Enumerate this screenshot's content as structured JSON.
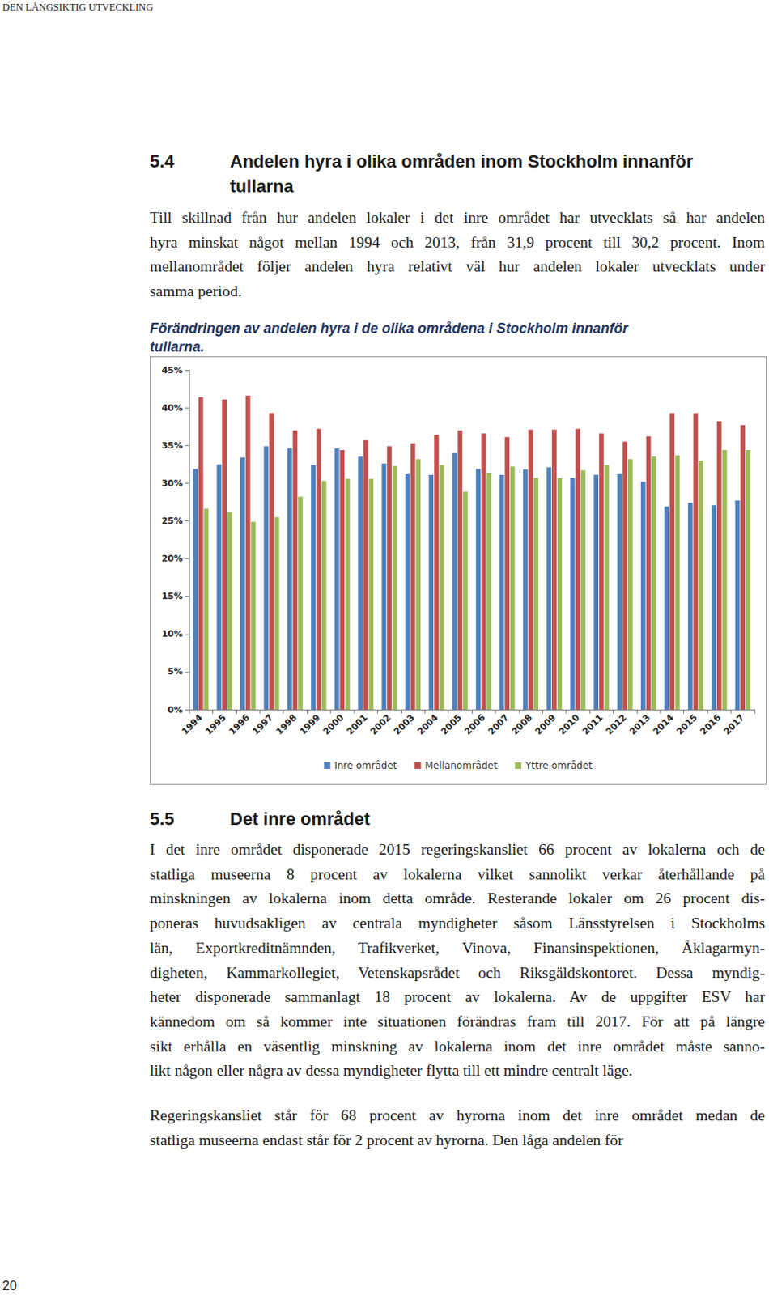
{
  "header": "DEN LÅNGSIKTIG UTVECKLING",
  "section_5_4": {
    "number": "5.4",
    "title_lines": [
      "Andelen hyra i olika områden inom Stockholm innanför",
      "tullarna"
    ],
    "paragraph_lines": [
      "Till skillnad från hur andelen lokaler i det inre området har utvecklats så har andelen",
      "hyra minskat något mellan 1994 och 2013, från 31,9 procent till 30,2 procent. Inom",
      "mellanområdet följer andelen hyra relativt väl hur andelen lokaler utvecklats under",
      "samma period."
    ],
    "figure_caption_lines": [
      "Förändringen av andelen hyra i de olika områdena i Stockholm innanför",
      "tullarna."
    ]
  },
  "chart_data": {
    "type": "bar",
    "categories": [
      "1994",
      "1995",
      "1996",
      "1997",
      "1998",
      "1999",
      "2000",
      "2001",
      "2002",
      "2003",
      "2004",
      "2005",
      "2006",
      "2007",
      "2008",
      "2009",
      "2010",
      "2011",
      "2012",
      "2013",
      "2014",
      "2015",
      "2016",
      "2017"
    ],
    "series": [
      {
        "name": "Inre området",
        "color": "#4f81bd",
        "values": [
          31.9,
          32.5,
          33.4,
          34.9,
          34.6,
          32.4,
          34.6,
          33.5,
          32.6,
          31.2,
          31.1,
          34.0,
          31.9,
          31.1,
          31.8,
          32.1,
          30.7,
          31.1,
          31.2,
          30.2,
          26.9,
          27.4,
          27.1,
          27.7
        ]
      },
      {
        "name": "Mellanområdet",
        "color": "#c0504d",
        "values": [
          41.4,
          41.1,
          41.6,
          39.3,
          37.0,
          37.2,
          34.4,
          35.7,
          34.9,
          35.3,
          36.4,
          37.0,
          36.6,
          36.1,
          37.1,
          37.1,
          37.2,
          36.6,
          35.5,
          36.2,
          39.3,
          39.3,
          38.2,
          37.7
        ]
      },
      {
        "name": "Yttre området",
        "color": "#9bbb59",
        "values": [
          26.6,
          26.2,
          24.9,
          25.5,
          28.2,
          30.3,
          30.6,
          30.6,
          32.3,
          33.2,
          32.4,
          28.9,
          31.3,
          32.2,
          30.7,
          30.7,
          31.7,
          32.4,
          33.2,
          33.5,
          33.7,
          33.0,
          34.4,
          34.4
        ]
      }
    ],
    "ylim": [
      0,
      45
    ],
    "yticks": [
      {
        "value": 0,
        "label": "0%"
      },
      {
        "value": 5,
        "label": "5%"
      },
      {
        "value": 10,
        "label": "10%"
      },
      {
        "value": 15,
        "label": "15%"
      },
      {
        "value": 20,
        "label": "20%"
      },
      {
        "value": 25,
        "label": "25%"
      },
      {
        "value": 30,
        "label": "30%"
      },
      {
        "value": 35,
        "label": "35%"
      },
      {
        "value": 40,
        "label": "40%"
      },
      {
        "value": 45,
        "label": "45%"
      }
    ],
    "grid": false,
    "legend": "bottom"
  },
  "section_5_5": {
    "number": "5.5",
    "title": "Det inre området",
    "paragraphs": [
      [
        "I det inre området disponerade 2015 regeringskansliet 66 procent av lokalerna och de",
        "statliga museerna 8 procent av lokalerna vilket sannolikt verkar återhållande på",
        "minskningen av lokalerna inom detta område. Resterande lokaler om 26 procent dis-",
        "poneras huvudsakligen av centrala myndigheter såsom Länsstyrelsen i Stockholms",
        "län, Exportkreditnämnden, Trafikverket, Vinova, Finansinspektionen, Åklagarmyn-",
        "digheten, Kammarkollegiet, Vetenskapsrådet och Riksgäldskontoret. Dessa myndig-",
        "heter disponerade sammanlagt 18 procent av lokalerna. Av de uppgifter ESV har",
        "kännedom om så kommer inte situationen förändras fram till 2017. För att på längre",
        "sikt erhålla en väsentlig minskning av lokalerna inom det inre området måste sanno-",
        "likt någon eller några av dessa myndigheter flytta till ett mindre centralt läge."
      ],
      [
        "Regeringskansliet står för 68 procent av hyrorna inom det inre området medan de",
        "statliga museerna endast står för 2 procent av hyrorna. Den låga andelen för"
      ]
    ]
  },
  "page_number": "20"
}
